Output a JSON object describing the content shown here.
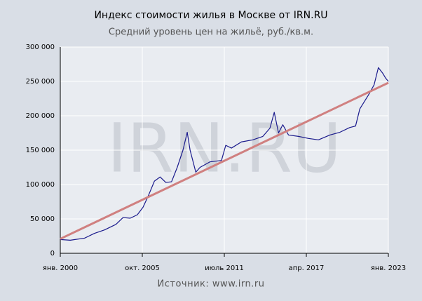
{
  "chart_data": {
    "type": "line",
    "title": "Индекс стоимости жилья в Москве от IRN.RU",
    "subtitle": "Средний уровень цен на жильё, руб./кв.м.",
    "source": "Источник: www.irn.ru",
    "watermark": "IRN.RU",
    "grid": true,
    "xlim": [
      2000,
      2023
    ],
    "ylim": [
      0,
      300000
    ],
    "xticks": [
      {
        "value": 2000,
        "label": "янв. 2000"
      },
      {
        "value": 2005.75,
        "label": "окт. 2005"
      },
      {
        "value": 2011.5,
        "label": "июль 2011"
      },
      {
        "value": 2017.25,
        "label": "апр. 2017"
      },
      {
        "value": 2023,
        "label": "янв. 2023"
      }
    ],
    "yticks": [
      0,
      {
        "value": 50000,
        "label": "50 000"
      },
      {
        "value": 100000,
        "label": "100 000"
      },
      {
        "value": 150000,
        "label": "150 000"
      },
      {
        "value": 200000,
        "label": "200 000"
      },
      {
        "value": 250000,
        "label": "250 000"
      },
      {
        "value": 300000,
        "label": "300 000"
      }
    ],
    "series": [
      {
        "color": "#1a1a8c",
        "width": 1.2,
        "x": [
          2000.0,
          2000.7,
          2001.7,
          2002.4,
          2003.1,
          2003.9,
          2004.4,
          2004.9,
          2005.4,
          2005.8,
          2006.2,
          2006.6,
          2007.0,
          2007.4,
          2007.8,
          2008.2,
          2008.6,
          2008.9,
          2009.1,
          2009.5,
          2009.8,
          2010.5,
          2011.3,
          2011.6,
          2012.0,
          2012.7,
          2013.5,
          2014.2,
          2014.7,
          2015.0,
          2015.3,
          2015.6,
          2016.0,
          2016.7,
          2017.4,
          2018.1,
          2018.9,
          2019.6,
          2020.3,
          2020.7,
          2021.0,
          2021.6,
          2022.0,
          2022.3,
          2022.6,
          2022.8,
          2023.0
        ],
        "values": [
          20000,
          19000,
          22000,
          29000,
          34000,
          42000,
          52000,
          51000,
          56000,
          67000,
          85000,
          105000,
          111000,
          103000,
          104000,
          125000,
          150000,
          176000,
          150000,
          118000,
          125000,
          133000,
          135000,
          157000,
          153000,
          162000,
          165000,
          170000,
          182000,
          205000,
          175000,
          187000,
          172000,
          170000,
          167000,
          165000,
          172000,
          176000,
          183000,
          185000,
          210000,
          230000,
          245000,
          270000,
          262000,
          255000,
          250000
        ]
      },
      {
        "color": "#d08080",
        "width": 3,
        "x": [
          2000,
          2023
        ],
        "values": [
          21000,
          248000
        ]
      }
    ]
  }
}
